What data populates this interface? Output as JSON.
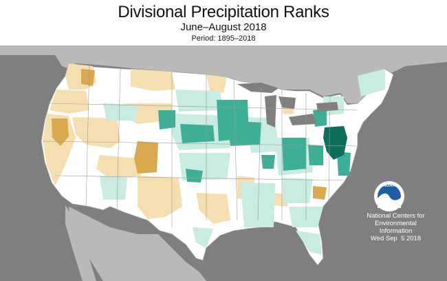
{
  "header": {
    "title": "Divisional Precipitation Ranks",
    "subtitle": "June–August 2018",
    "period": "Period: 1895–2018"
  },
  "logo": {
    "text": "NOAA",
    "colors": {
      "ring": "#ffffff",
      "sky": "#1f5fa8",
      "bird": "#ffffff"
    }
  },
  "credit": {
    "line1": "National Centers for",
    "line2": "Environmental",
    "line3": "Information",
    "date": "Wed Sep  5 2018"
  },
  "map_colors": {
    "background": "#7f7f7f",
    "land_outside": "#b9b9b9",
    "lakes": "#7f7f7f",
    "near_normal": "#ffffff",
    "below_normal": "#f5dfb0",
    "much_below_normal": "#d8a94e",
    "above_normal": "#c8ebe2",
    "much_above_normal": "#3fae97",
    "record_wettest": "#0d6e5c",
    "borders": "#9a9a9a"
  }
}
